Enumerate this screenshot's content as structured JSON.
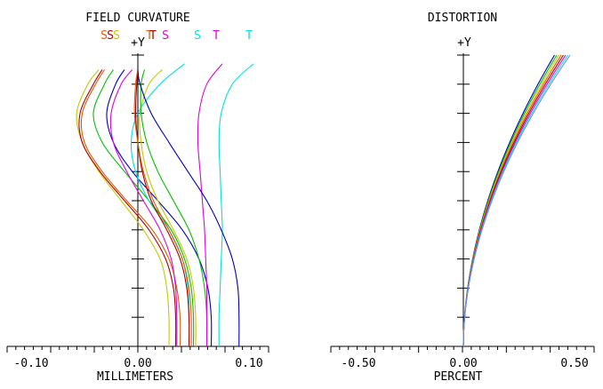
{
  "chart_data": [
    {
      "type": "line",
      "title": "FIELD CURVATURE",
      "xlabel": "MILLIMETERS",
      "ylabel": "+Y",
      "xlim": [
        -0.1,
        0.1
      ],
      "ylim": [
        0,
        1
      ],
      "xticks": [
        "-0.10",
        "0.00",
        "0.10"
      ],
      "grid": false,
      "legend": {
        "placement": "top",
        "entries": [
          {
            "text": "S",
            "color": "#e05a00"
          },
          {
            "text": "S",
            "color": "#b00000"
          },
          {
            "text": "S",
            "color": "#c8c800"
          },
          {
            "text": "T",
            "color": "#e05a00"
          },
          {
            "text": "T",
            "color": "#b00000"
          },
          {
            "text": "S",
            "color": "#e000e0"
          },
          {
            "text": "S",
            "color": "#00e0e0"
          },
          {
            "text": "T",
            "color": "#e000e0"
          },
          {
            "text": "T",
            "color": "#00e0e0"
          }
        ]
      },
      "series": [
        {
          "color": "#c8c800",
          "points": [
            [
              0.028,
              0
            ],
            [
              0.028,
              0.1
            ],
            [
              0.026,
              0.2
            ],
            [
              0.02,
              0.3
            ],
            [
              0.005,
              0.4
            ],
            [
              -0.015,
              0.5
            ],
            [
              -0.035,
              0.6
            ],
            [
              -0.05,
              0.7
            ],
            [
              -0.055,
              0.8
            ],
            [
              -0.045,
              0.9
            ],
            [
              -0.035,
              0.95
            ]
          ]
        },
        {
          "color": "#b00000",
          "points": [
            [
              0.034,
              0
            ],
            [
              0.034,
              0.1
            ],
            [
              0.032,
              0.2
            ],
            [
              0.025,
              0.3
            ],
            [
              0.01,
              0.4
            ],
            [
              -0.012,
              0.5
            ],
            [
              -0.034,
              0.6
            ],
            [
              -0.05,
              0.7
            ],
            [
              -0.052,
              0.8
            ],
            [
              -0.04,
              0.9
            ],
            [
              -0.032,
              0.95
            ]
          ]
        },
        {
          "color": "#e05a00",
          "points": [
            [
              0.038,
              0
            ],
            [
              0.038,
              0.1
            ],
            [
              0.035,
              0.2
            ],
            [
              0.028,
              0.3
            ],
            [
              0.013,
              0.4
            ],
            [
              -0.01,
              0.5
            ],
            [
              -0.032,
              0.6
            ],
            [
              -0.048,
              0.7
            ],
            [
              -0.05,
              0.8
            ],
            [
              -0.038,
              0.9
            ],
            [
              -0.03,
              0.95
            ]
          ]
        },
        {
          "color": "#00c000",
          "points": [
            [
              0.05,
              0
            ],
            [
              0.05,
              0.1
            ],
            [
              0.048,
              0.2
            ],
            [
              0.042,
              0.3
            ],
            [
              0.03,
              0.4
            ],
            [
              0.01,
              0.5
            ],
            [
              -0.012,
              0.6
            ],
            [
              -0.032,
              0.7
            ],
            [
              -0.04,
              0.8
            ],
            [
              -0.03,
              0.9
            ],
            [
              -0.022,
              0.95
            ]
          ]
        },
        {
          "color": "#0000c0",
          "points": [
            [
              0.066,
              0
            ],
            [
              0.066,
              0.1
            ],
            [
              0.063,
              0.2
            ],
            [
              0.055,
              0.3
            ],
            [
              0.04,
              0.4
            ],
            [
              0.018,
              0.5
            ],
            [
              -0.005,
              0.6
            ],
            [
              -0.022,
              0.7
            ],
            [
              -0.028,
              0.8
            ],
            [
              -0.02,
              0.9
            ],
            [
              -0.012,
              0.95
            ]
          ]
        },
        {
          "color": "#e000e0",
          "points": [
            [
              0.035,
              0
            ],
            [
              0.035,
              0.1
            ],
            [
              0.034,
              0.2
            ],
            [
              0.03,
              0.3
            ],
            [
              0.02,
              0.4
            ],
            [
              0.005,
              0.5
            ],
            [
              -0.01,
              0.6
            ],
            [
              -0.022,
              0.7
            ],
            [
              -0.024,
              0.8
            ],
            [
              -0.015,
              0.9
            ],
            [
              -0.005,
              0.95
            ]
          ]
        },
        {
          "color": "#00e0e0",
          "points": [
            [
              0.046,
              0
            ],
            [
              0.046,
              0.1
            ],
            [
              0.045,
              0.2
            ],
            [
              0.04,
              0.3
            ],
            [
              0.028,
              0.4
            ],
            [
              0.01,
              0.5
            ],
            [
              -0.002,
              0.6
            ],
            [
              -0.006,
              0.7
            ],
            [
              0.0,
              0.8
            ],
            [
              0.02,
              0.9
            ],
            [
              0.042,
              0.97
            ]
          ]
        },
        {
          "color": "#b00000",
          "points": [
            [
              0.046,
              0
            ],
            [
              0.046,
              0.1
            ],
            [
              0.044,
              0.2
            ],
            [
              0.038,
              0.3
            ],
            [
              0.026,
              0.4
            ],
            [
              0.012,
              0.5
            ],
            [
              0.004,
              0.6
            ],
            [
              0.0,
              0.7
            ],
            [
              -0.002,
              0.8
            ],
            [
              -0.001,
              0.9
            ],
            [
              0.0,
              0.95
            ]
          ]
        },
        {
          "color": "#e05a00",
          "points": [
            [
              0.048,
              0
            ],
            [
              0.048,
              0.1
            ],
            [
              0.046,
              0.2
            ],
            [
              0.04,
              0.3
            ],
            [
              0.028,
              0.4
            ],
            [
              0.014,
              0.5
            ],
            [
              0.005,
              0.6
            ],
            [
              0.0,
              0.7
            ],
            [
              -0.003,
              0.8
            ],
            [
              -0.002,
              0.9
            ],
            [
              0.0,
              0.95
            ]
          ]
        },
        {
          "color": "#c8c800",
          "points": [
            [
              0.052,
              0
            ],
            [
              0.052,
              0.1
            ],
            [
              0.05,
              0.2
            ],
            [
              0.044,
              0.3
            ],
            [
              0.032,
              0.4
            ],
            [
              0.018,
              0.5
            ],
            [
              0.008,
              0.6
            ],
            [
              0.003,
              0.7
            ],
            [
              0.002,
              0.8
            ],
            [
              0.01,
              0.9
            ],
            [
              0.022,
              0.95
            ]
          ]
        },
        {
          "color": "#00c000",
          "points": [
            [
              0.062,
              0
            ],
            [
              0.062,
              0.1
            ],
            [
              0.06,
              0.2
            ],
            [
              0.055,
              0.3
            ],
            [
              0.046,
              0.4
            ],
            [
              0.032,
              0.5
            ],
            [
              0.018,
              0.6
            ],
            [
              0.008,
              0.7
            ],
            [
              0.003,
              0.8
            ],
            [
              0.003,
              0.9
            ],
            [
              0.006,
              0.95
            ]
          ]
        },
        {
          "color": "#e000e0",
          "points": [
            [
              0.062,
              0
            ],
            [
              0.062,
              0.1
            ],
            [
              0.062,
              0.2
            ],
            [
              0.061,
              0.3
            ],
            [
              0.06,
              0.4
            ],
            [
              0.058,
              0.5
            ],
            [
              0.056,
              0.6
            ],
            [
              0.054,
              0.7
            ],
            [
              0.055,
              0.8
            ],
            [
              0.062,
              0.9
            ],
            [
              0.076,
              0.97
            ]
          ]
        },
        {
          "color": "#00e0e0",
          "points": [
            [
              0.073,
              0
            ],
            [
              0.073,
              0.1
            ],
            [
              0.074,
              0.2
            ],
            [
              0.075,
              0.3
            ],
            [
              0.076,
              0.4
            ],
            [
              0.075,
              0.5
            ],
            [
              0.074,
              0.6
            ],
            [
              0.073,
              0.7
            ],
            [
              0.075,
              0.8
            ],
            [
              0.085,
              0.9
            ],
            [
              0.104,
              0.97
            ]
          ]
        },
        {
          "color": "#0000c0",
          "points": [
            [
              0.091,
              0
            ],
            [
              0.091,
              0.1
            ],
            [
              0.09,
              0.2
            ],
            [
              0.085,
              0.3
            ],
            [
              0.075,
              0.4
            ],
            [
              0.062,
              0.5
            ],
            [
              0.045,
              0.6
            ],
            [
              0.028,
              0.7
            ],
            [
              0.012,
              0.8
            ],
            [
              0.002,
              0.9
            ],
            [
              0.0,
              0.95
            ]
          ]
        }
      ]
    },
    {
      "type": "line",
      "title": "DISTORTION",
      "xlabel": "PERCENT",
      "ylabel": "+Y",
      "xlim": [
        -0.5,
        0.5
      ],
      "ylim": [
        0,
        1
      ],
      "xticks": [
        "-0.50",
        "0.00",
        "0.50"
      ],
      "grid": false,
      "series": [
        {
          "color": "#0000c0",
          "end": 0.41
        },
        {
          "color": "#00c000",
          "end": 0.42
        },
        {
          "color": "#c8c800",
          "end": 0.43
        },
        {
          "color": "#e05a00",
          "end": 0.44
        },
        {
          "color": "#b00000",
          "end": 0.45
        },
        {
          "color": "#e000e0",
          "end": 0.46
        },
        {
          "color": "#00e0e0",
          "end": 0.47
        },
        {
          "color": "#6a8cff",
          "end": 0.48
        }
      ]
    }
  ]
}
